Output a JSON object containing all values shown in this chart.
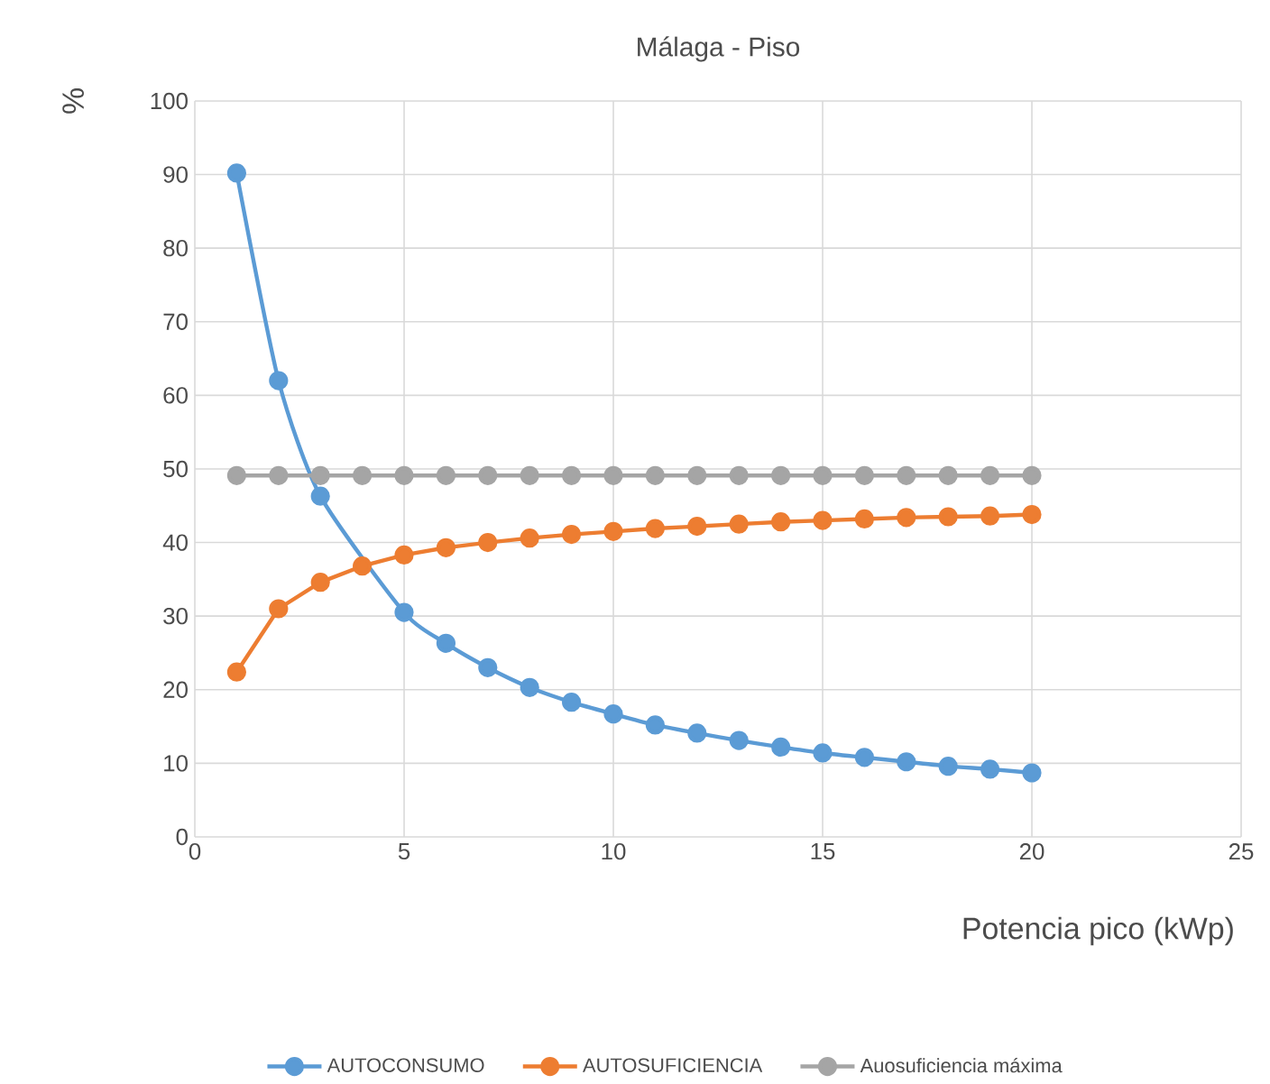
{
  "chart_data": {
    "type": "line",
    "title": "Málaga - Piso",
    "xlabel": "Potencia pico (kWp)",
    "ylabel": "%",
    "x": [
      1,
      2,
      3,
      4,
      5,
      6,
      7,
      8,
      9,
      10,
      11,
      12,
      13,
      14,
      15,
      16,
      17,
      18,
      19,
      20
    ],
    "series": [
      {
        "name": "AUTOCONSUMO",
        "color": "#5b9bd5",
        "values": [
          90.2,
          62,
          46.3,
          null,
          30.5,
          26.3,
          23,
          20.3,
          18.3,
          16.7,
          15.2,
          14.1,
          13.1,
          12.2,
          11.4,
          10.8,
          10.2,
          9.6,
          9.2,
          8.7
        ]
      },
      {
        "name": "AUTOSUFICIENCIA",
        "color": "#ed7d31",
        "values": [
          22.4,
          31,
          34.6,
          36.8,
          38.3,
          39.3,
          40,
          40.6,
          41.1,
          41.5,
          41.9,
          42.2,
          42.5,
          42.8,
          43,
          43.2,
          43.4,
          43.5,
          43.6,
          43.8
        ]
      },
      {
        "name": "Auosuficiencia máxima",
        "color": "#a5a5a5",
        "values": [
          49.1,
          49.1,
          49.1,
          49.1,
          49.1,
          49.1,
          49.1,
          49.1,
          49.1,
          49.1,
          49.1,
          49.1,
          49.1,
          49.1,
          49.1,
          49.1,
          49.1,
          49.1,
          49.1,
          49.1
        ]
      }
    ],
    "xlim": [
      0,
      25
    ],
    "xticks": [
      0,
      5,
      10,
      15,
      20,
      25
    ],
    "ylim": [
      0,
      100
    ],
    "yticks": [
      0,
      10,
      20,
      30,
      40,
      50,
      60,
      70,
      80,
      90,
      100
    ],
    "grid": true,
    "legend": "bottom",
    "marker": "circle",
    "line_style": "solid"
  }
}
